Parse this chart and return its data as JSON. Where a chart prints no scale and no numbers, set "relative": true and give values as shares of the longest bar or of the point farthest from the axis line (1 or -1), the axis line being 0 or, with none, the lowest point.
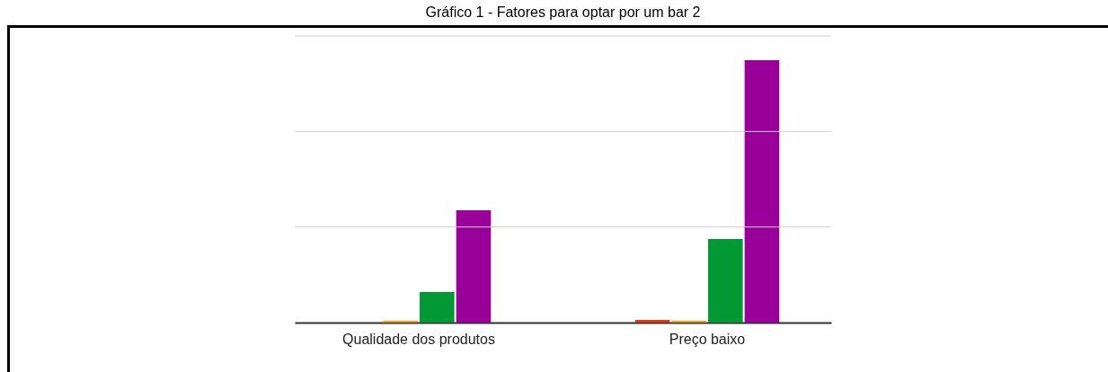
{
  "chart_data": {
    "type": "bar",
    "title": "Gráfico 1 - Fatores para optar por um bar 2",
    "relative": true,
    "ref_lines": [
      {
        "axis": "y",
        "value": 0.364,
        "color": "#cccccc"
      },
      {
        "axis": "y",
        "value": 0.728,
        "color": "#cccccc"
      },
      {
        "axis": "y",
        "value": 1.092,
        "color": "#cccccc"
      }
    ],
    "categories": [
      "Qualidade dos produtos",
      "Preço baixo"
    ],
    "series": [
      {
        "color": "#dc3912",
        "values": [
          0,
          0.01
        ]
      },
      {
        "color": "#ff9900",
        "values": [
          0.007,
          0.007
        ]
      },
      {
        "color": "#009933",
        "values": [
          0.116,
          0.318
        ]
      },
      {
        "color": "#990099",
        "values": [
          0.428,
          1
        ]
      }
    ]
  }
}
